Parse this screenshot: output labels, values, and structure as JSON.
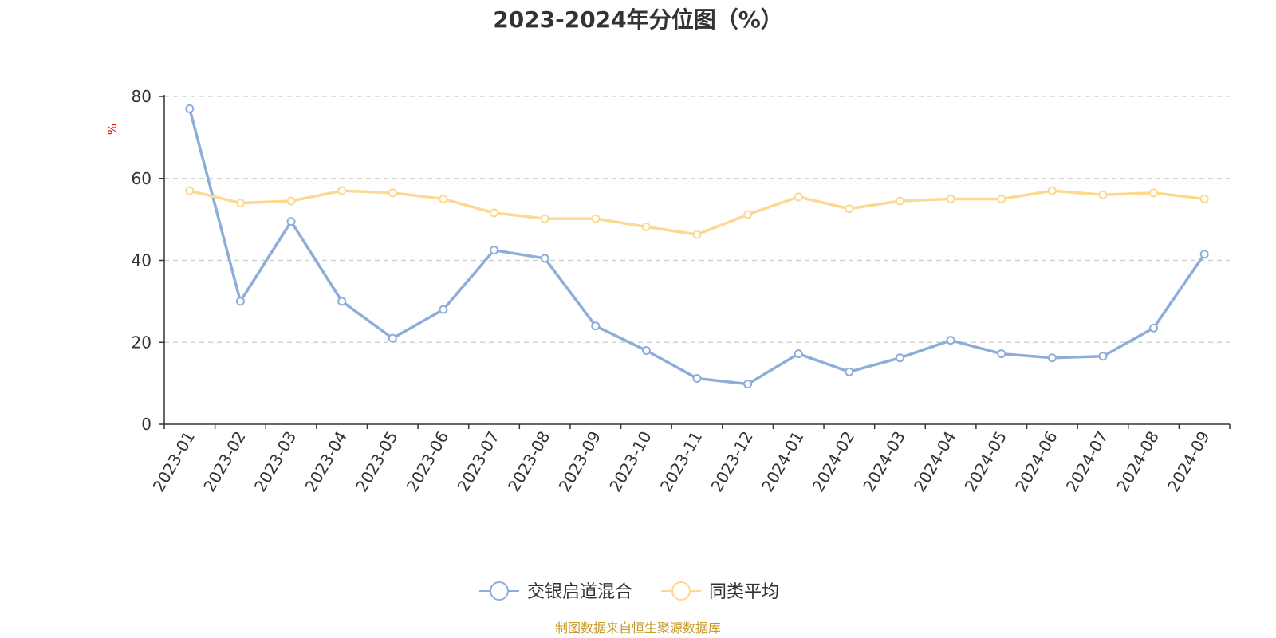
{
  "chart_data": {
    "type": "line",
    "title": "2023-2024年分位图（%）",
    "ylabel": "%",
    "xlabel": "",
    "ylim": [
      0,
      80
    ],
    "yticks": [
      0,
      20,
      40,
      60,
      80
    ],
    "grid": true,
    "legend_position": "bottom-center",
    "categories": [
      "2023-01",
      "2023-02",
      "2023-03",
      "2023-04",
      "2023-05",
      "2023-06",
      "2023-07",
      "2023-08",
      "2023-09",
      "2023-10",
      "2023-11",
      "2023-12",
      "2024-01",
      "2024-02",
      "2024-03",
      "2024-04",
      "2024-05",
      "2024-06",
      "2024-07",
      "2024-08",
      "2024-09"
    ],
    "series": [
      {
        "name": "交银启道混合",
        "color": "#8eaed9",
        "values": [
          77,
          30,
          49.5,
          30,
          21,
          28,
          42.5,
          40.5,
          24,
          18,
          11.2,
          9.8,
          17.2,
          12.8,
          16.2,
          20.5,
          17.2,
          16.2,
          16.6,
          23.5,
          41.5
        ]
      },
      {
        "name": "同类平均",
        "color": "#fdd890",
        "values": [
          57,
          54,
          54.5,
          57,
          56.5,
          55,
          51.6,
          50.2,
          50.2,
          48.2,
          46.3,
          51.2,
          55.5,
          52.6,
          54.5,
          55,
          55,
          57,
          56,
          56.5,
          55
        ]
      }
    ],
    "source_note": "制图数据来自恒生聚源数据库",
    "colors": {
      "axis": "#333333",
      "grid": "#cccccc",
      "unit_label": "#ff0000",
      "source_note": "#c79a2a"
    }
  }
}
